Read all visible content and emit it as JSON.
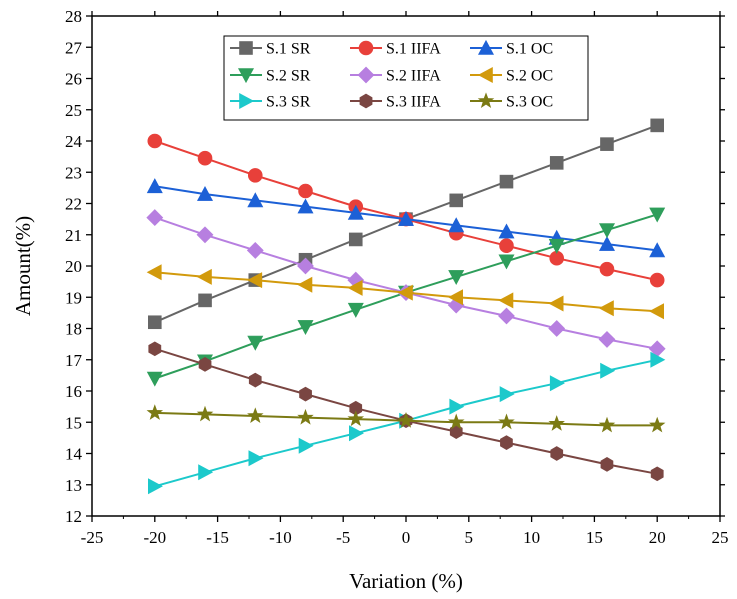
{
  "chart_data": {
    "type": "line",
    "xlabel": "Variation (%)",
    "ylabel": "Amount(%)",
    "xlim": [
      -25,
      25
    ],
    "ylim": [
      12,
      28
    ],
    "xticks": [
      -25,
      -20,
      -15,
      -10,
      -5,
      0,
      5,
      10,
      15,
      20,
      25
    ],
    "yticks": [
      12,
      13,
      14,
      15,
      16,
      17,
      18,
      19,
      20,
      21,
      22,
      23,
      24,
      25,
      26,
      27,
      28
    ],
    "grid": false,
    "legend_position": "top-center",
    "x": [
      -20,
      -16,
      -12,
      -8,
      -4,
      0,
      4,
      8,
      12,
      16,
      20
    ],
    "series": [
      {
        "name": "S.1 SR",
        "color": "#666666",
        "marker": "square",
        "values": [
          18.2,
          18.9,
          19.55,
          20.2,
          20.85,
          21.5,
          22.1,
          22.7,
          23.3,
          23.9,
          24.5
        ]
      },
      {
        "name": "S.1 IIFA",
        "color": "#e8403a",
        "marker": "circle",
        "values": [
          24.0,
          23.45,
          22.9,
          22.4,
          21.9,
          21.5,
          21.05,
          20.65,
          20.25,
          19.9,
          19.55
        ]
      },
      {
        "name": "S.1 OC",
        "color": "#1c60d6",
        "marker": "triangle-up",
        "values": [
          22.55,
          22.3,
          22.1,
          21.9,
          21.7,
          21.5,
          21.3,
          21.1,
          20.9,
          20.7,
          20.5
        ]
      },
      {
        "name": "S.2 SR",
        "color": "#2e9e5b",
        "marker": "triangle-down",
        "values": [
          16.4,
          16.95,
          17.55,
          18.05,
          18.6,
          19.15,
          19.65,
          20.15,
          20.65,
          21.15,
          21.65
        ]
      },
      {
        "name": "S.2 IIFA",
        "color": "#b77fe0",
        "marker": "diamond",
        "values": [
          21.55,
          21.0,
          20.5,
          20.0,
          19.55,
          19.15,
          18.75,
          18.4,
          18.0,
          17.65,
          17.35
        ]
      },
      {
        "name": "S.2 OC",
        "color": "#d29a0c",
        "marker": "triangle-left",
        "values": [
          19.8,
          19.65,
          19.55,
          19.4,
          19.3,
          19.15,
          19.0,
          18.9,
          18.8,
          18.65,
          18.55
        ]
      },
      {
        "name": "S.3 SR",
        "color": "#1cc9cb",
        "marker": "triangle-right",
        "values": [
          12.95,
          13.4,
          13.85,
          14.25,
          14.65,
          15.05,
          15.5,
          15.9,
          16.25,
          16.65,
          17.0
        ]
      },
      {
        "name": "S.3 IIFA",
        "color": "#7a4642",
        "marker": "hexagon",
        "values": [
          17.35,
          16.85,
          16.35,
          15.9,
          15.45,
          15.05,
          14.7,
          14.35,
          14.0,
          13.65,
          13.35
        ]
      },
      {
        "name": "S.3 OC",
        "color": "#7b7a14",
        "marker": "star",
        "values": [
          15.3,
          15.25,
          15.2,
          15.15,
          15.1,
          15.05,
          15.0,
          15.0,
          14.95,
          14.9,
          14.9
        ]
      }
    ]
  }
}
